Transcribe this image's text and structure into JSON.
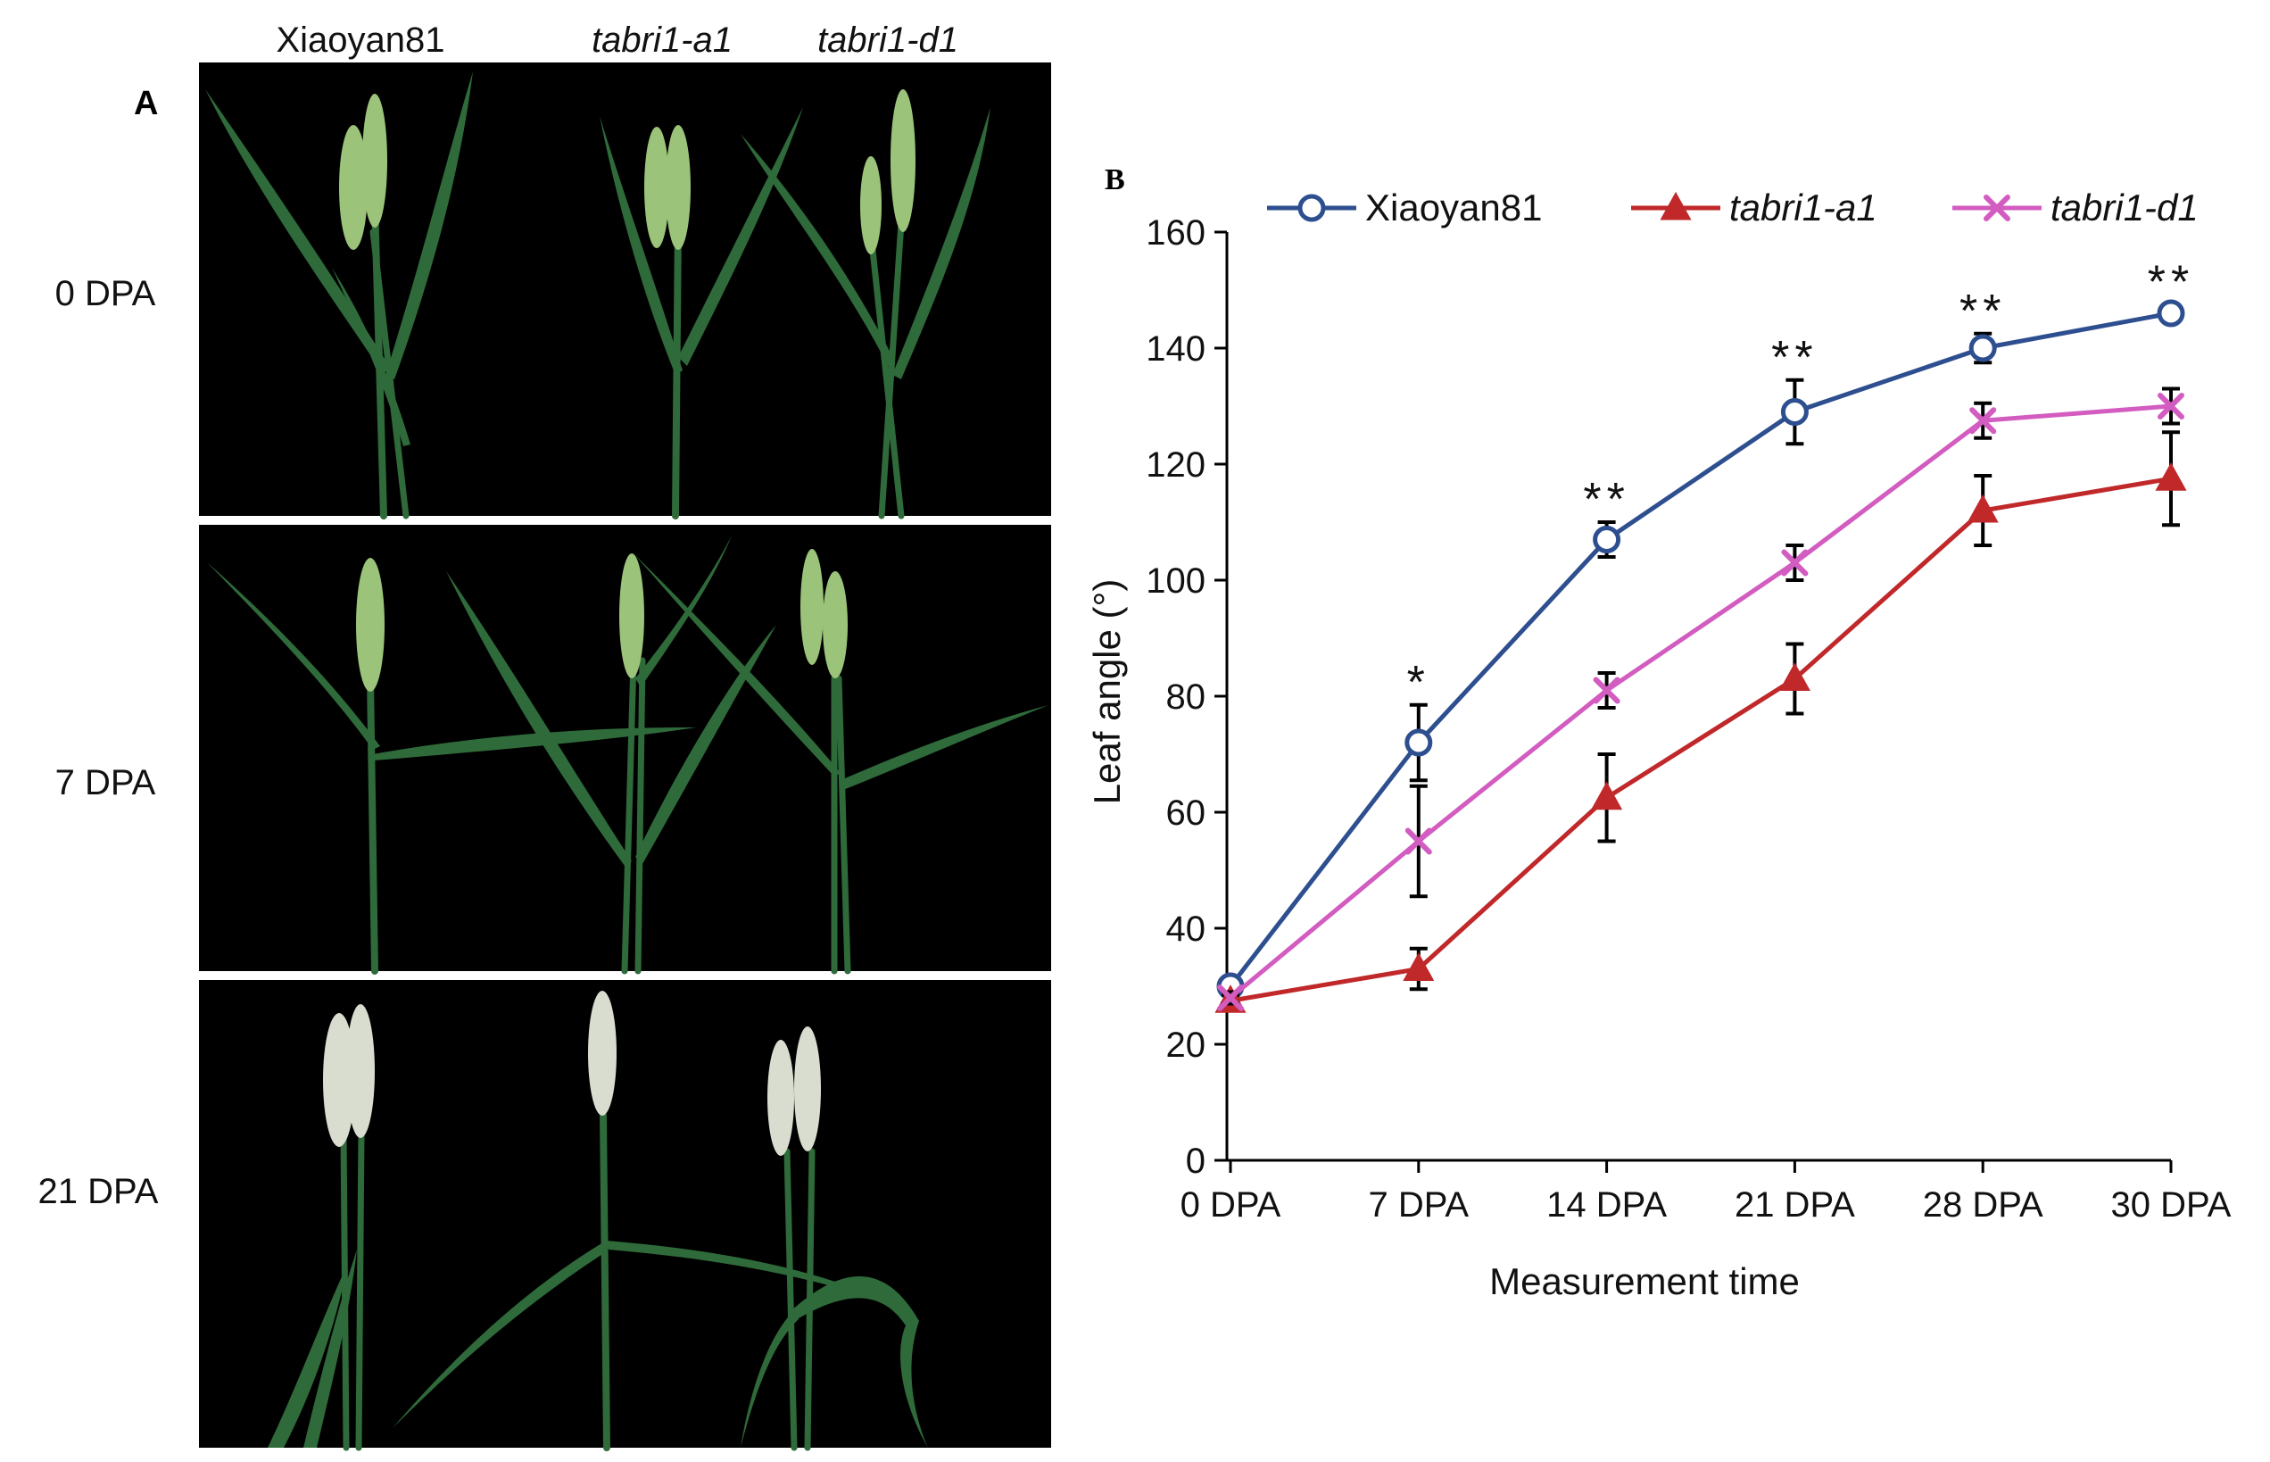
{
  "panel_a": {
    "letter": "A",
    "columns": [
      "Xiaoyan81",
      "tabri1-a1",
      "tabri1-d1"
    ],
    "rows": [
      "0 DPA",
      "7 DPA",
      "21 DPA"
    ]
  },
  "panel_b": {
    "letter": "B"
  },
  "colors": {
    "xiaoyan81": "#2e4f8f",
    "tabri1_a1": "#c0282a",
    "tabri1_d1": "#d35cc0",
    "plant_background": "#000000",
    "leaf_green": "#2f6a3a",
    "spike_green": "#9cc37a",
    "spike_white": "#d9ddd0"
  },
  "chart_data": {
    "type": "line",
    "title": "",
    "xlabel": "Measurement time",
    "ylabel": "Leaf angle (°)",
    "ylim": [
      0,
      160
    ],
    "yticks": [
      "0",
      "20",
      "40",
      "60",
      "80",
      "100",
      "120",
      "140",
      "160"
    ],
    "categories": [
      "0 DPA",
      "7 DPA",
      "14 DPA",
      "21 DPA",
      "28 DPA",
      "30 DPA"
    ],
    "legend_position": "top",
    "grid": false,
    "series": [
      {
        "name": "Xiaoyan81",
        "italic": false,
        "marker": "circle",
        "color": "#2e4f8f",
        "values": [
          30,
          72,
          107,
          129,
          140,
          146
        ],
        "errors": [
          1,
          6.5,
          3,
          5.5,
          2.5,
          1.5
        ]
      },
      {
        "name": "tabri1-a1",
        "italic": true,
        "marker": "triangle",
        "color": "#c0282a",
        "values": [
          27.5,
          33,
          62.5,
          83,
          112,
          117.5
        ],
        "errors": [
          1,
          3.5,
          7.5,
          6,
          6,
          8
        ]
      },
      {
        "name": "tabri1-d1",
        "italic": true,
        "marker": "x",
        "color": "#d35cc0",
        "values": [
          28,
          55,
          81,
          103,
          127.5,
          130
        ],
        "errors": [
          1,
          9.5,
          3,
          3,
          3,
          3
        ]
      }
    ],
    "annotations": [
      {
        "category": "7 DPA",
        "text": "*"
      },
      {
        "category": "14 DPA",
        "text": "**"
      },
      {
        "category": "21 DPA",
        "text": "**"
      },
      {
        "category": "28 DPA",
        "text": "**"
      },
      {
        "category": "30 DPA",
        "text": "**"
      }
    ]
  }
}
